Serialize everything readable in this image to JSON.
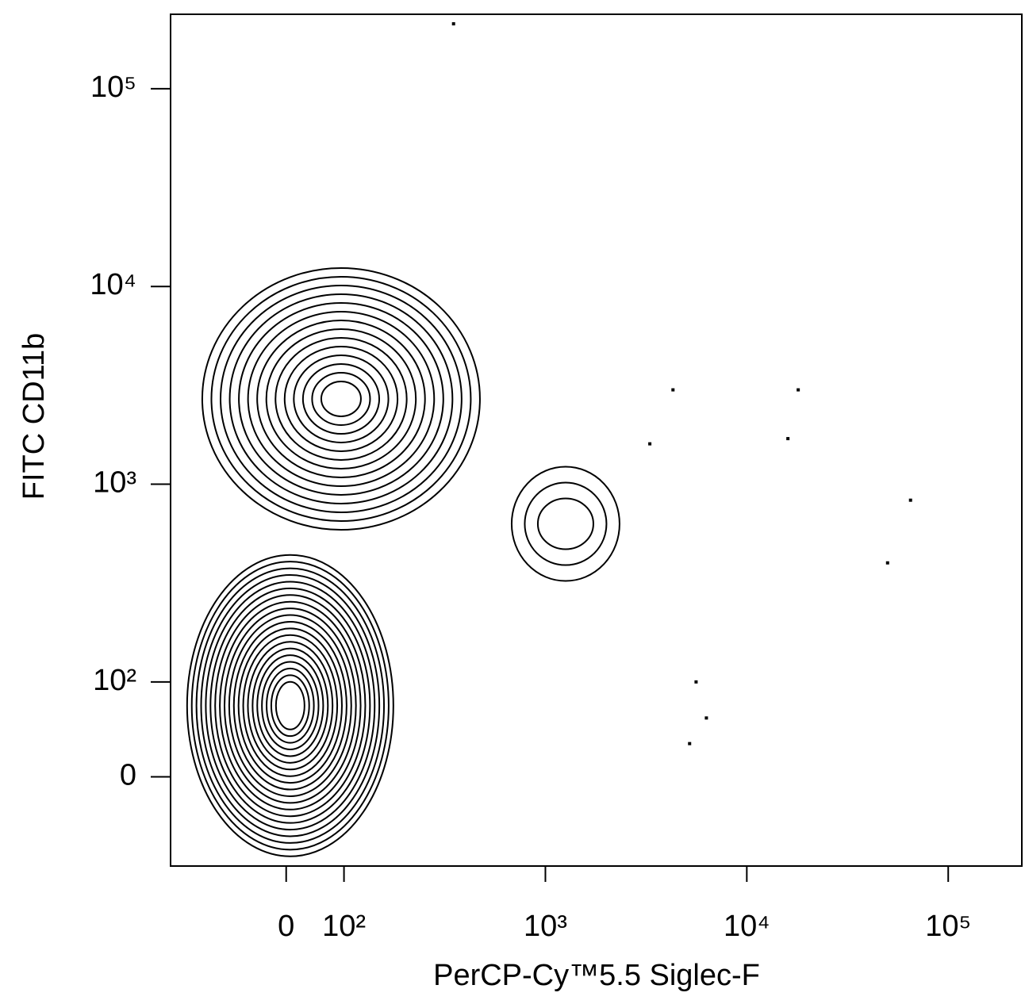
{
  "chart_data": {
    "type": "contour",
    "x_label": "PerCP-Cy™5.5 Siglec-F",
    "y_label": "FITC CD11b",
    "xscale": "biexponential",
    "yscale": "biexponential",
    "xlim": [
      -200,
      232000
    ],
    "ylim": [
      -94,
      238000
    ],
    "xticks": [
      0,
      {
        "value": 100,
        "label": "10²"
      },
      {
        "value": 1000,
        "label": "10³"
      },
      {
        "value": 10000,
        "label": "10⁴"
      },
      {
        "value": 100000,
        "label": "10⁵"
      }
    ],
    "yticks": [
      0,
      {
        "value": 100,
        "label": "10²"
      },
      {
        "value": 1000,
        "label": "10³"
      },
      {
        "value": 10000,
        "label": "10⁴"
      },
      {
        "value": 100000,
        "label": "10⁵"
      }
    ],
    "populations": {
      "x": [
        95,
        1260,
        7
      ],
      "y": [
        2700,
        630,
        75
      ]
    },
    "events": {
      "x": [
        350,
        18000,
        16000,
        65000,
        50000,
        5600,
        6300,
        5200,
        4300,
        3300
      ],
      "y": [
        213000,
        3000,
        1700,
        830,
        400,
        100,
        62,
        35,
        3000,
        1600
      ]
    },
    "color": "#000000"
  }
}
